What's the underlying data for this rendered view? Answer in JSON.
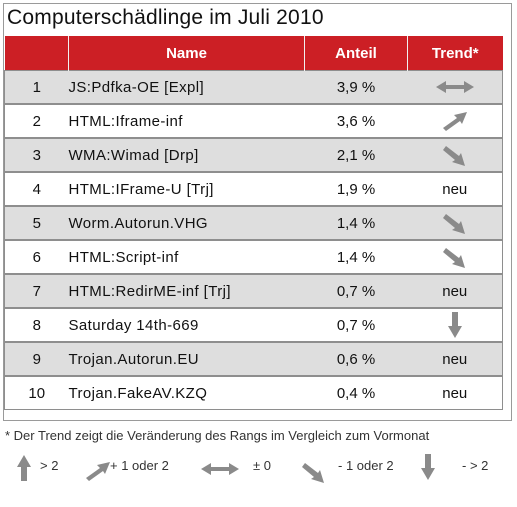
{
  "title": "Computerschädlinge im Juli 2010",
  "colors": {
    "header_bg": "#cc1f25",
    "row_shaded": "#dedede",
    "arrow": "#8a8a8a"
  },
  "table": {
    "headers": [
      "",
      "Name",
      "Anteil",
      "Trend*"
    ],
    "rows": [
      {
        "rank": "1",
        "name": "JS:Pdfka-OE [Expl]",
        "share": "3,9 %",
        "trend_icon": "arrow-both-icon",
        "trend_text": ""
      },
      {
        "rank": "2",
        "name": "HTML:Iframe-inf",
        "share": "3,6 %",
        "trend_icon": "arrow-up-right-icon",
        "trend_text": ""
      },
      {
        "rank": "3",
        "name": "WMA:Wimad [Drp]",
        "share": "2,1 %",
        "trend_icon": "arrow-down-right-icon",
        "trend_text": ""
      },
      {
        "rank": "4",
        "name": "HTML:IFrame-U [Trj]",
        "share": "1,9 %",
        "trend_icon": "",
        "trend_text": "neu"
      },
      {
        "rank": "5",
        "name": "Worm.Autorun.VHG",
        "share": "1,4 %",
        "trend_icon": "arrow-down-right-icon",
        "trend_text": ""
      },
      {
        "rank": "6",
        "name": "HTML:Script-inf",
        "share": "1,4 %",
        "trend_icon": "arrow-down-right-icon",
        "trend_text": ""
      },
      {
        "rank": "7",
        "name": "HTML:RedirME-inf [Trj]",
        "share": "0,7 %",
        "trend_icon": "",
        "trend_text": "neu"
      },
      {
        "rank": "8",
        "name": "Saturday 14th-669",
        "share": "0,7 %",
        "trend_icon": "arrow-down-icon",
        "trend_text": ""
      },
      {
        "rank": "9",
        "name": "Trojan.Autorun.EU",
        "share": "0,6 %",
        "trend_icon": "",
        "trend_text": "neu"
      },
      {
        "rank": "10",
        "name": "Trojan.FakeAV.KZQ",
        "share": "0,4 %",
        "trend_icon": "",
        "trend_text": "neu"
      }
    ]
  },
  "footnote": "* Der Trend zeigt die Veränderung des Rangs im Vergleich zum Vormonat",
  "legend": [
    {
      "icon": "arrow-up-icon",
      "label": "> 2"
    },
    {
      "icon": "arrow-up-right-icon",
      "label": "+ 1 oder 2"
    },
    {
      "icon": "arrow-both-icon",
      "label": "± 0"
    },
    {
      "icon": "arrow-down-right-icon",
      "label": "- 1 oder  2"
    },
    {
      "icon": "arrow-down-icon",
      "label": "- > 2"
    }
  ]
}
